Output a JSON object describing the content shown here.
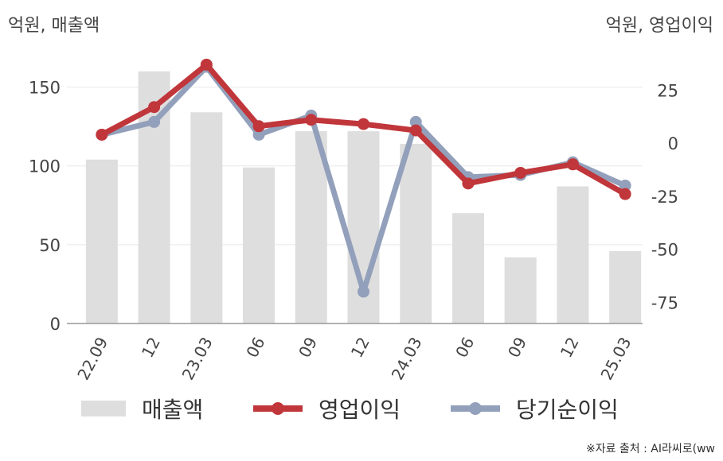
{
  "units": {
    "left": "억원, 매출액",
    "right": "억원, 영업이익"
  },
  "source": "※자료 출처 : AI라씨로(ww",
  "colors": {
    "bar": "#dedede",
    "operating_profit": "#c0363a",
    "net_income": "#93a0bb",
    "gridline": "#e8e8e8",
    "axis": "#999999"
  },
  "chart_data": {
    "type": "bar",
    "categories": [
      "22.09",
      "12",
      "23.03",
      "06",
      "09",
      "12",
      "24.03",
      "06",
      "09",
      "12",
      "25.03"
    ],
    "series": [
      {
        "name": "매출액",
        "type": "bar",
        "axis": "left",
        "values": [
          104,
          160,
          134,
          99,
          122,
          122,
          114,
          70,
          42,
          87,
          46
        ]
      },
      {
        "name": "영업이익",
        "type": "line",
        "axis": "right",
        "values": [
          4,
          17,
          37,
          8,
          11,
          9,
          6,
          -19,
          -14,
          -10,
          -24
        ]
      },
      {
        "name": "당기순이익",
        "type": "line",
        "axis": "right",
        "values": [
          4,
          10,
          36,
          4,
          13,
          null,
          10,
          -16,
          -15,
          -9,
          -20
        ]
      }
    ],
    "special_points": [
      {
        "series": "당기순이익",
        "category_index": 5,
        "value": -70
      }
    ],
    "y_left": {
      "range": [
        0,
        175
      ],
      "ticks": [
        "0",
        "50",
        "100",
        "150"
      ]
    },
    "y_right": {
      "range": [
        -85,
        45
      ],
      "ticks": [
        "25",
        "0",
        "-25",
        "-50",
        "-75"
      ]
    },
    "grid": true,
    "legend_position": "bottom"
  }
}
